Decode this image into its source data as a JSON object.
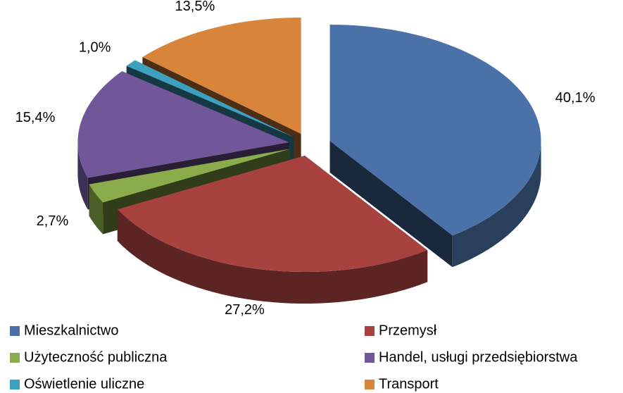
{
  "chart_data": {
    "type": "pie3d",
    "categories": [
      "Mieszkalnictwo",
      "Przemysł",
      "Użyteczność publiczna",
      "Handel, usługi przedsiębiorstwa",
      "Oświetlenie uliczne",
      "Transport"
    ],
    "values": [
      40.1,
      27.2,
      2.7,
      15.4,
      1.0,
      13.5
    ],
    "value_labels": [
      "40,1%",
      "27,2%",
      "2,7%",
      "15,4%",
      "1,0%",
      "13,5%"
    ],
    "colors": [
      "#4a72a8",
      "#a8423f",
      "#8aac4a",
      "#71569a",
      "#3ea0bf",
      "#d9843b"
    ],
    "legend": "bottom"
  }
}
